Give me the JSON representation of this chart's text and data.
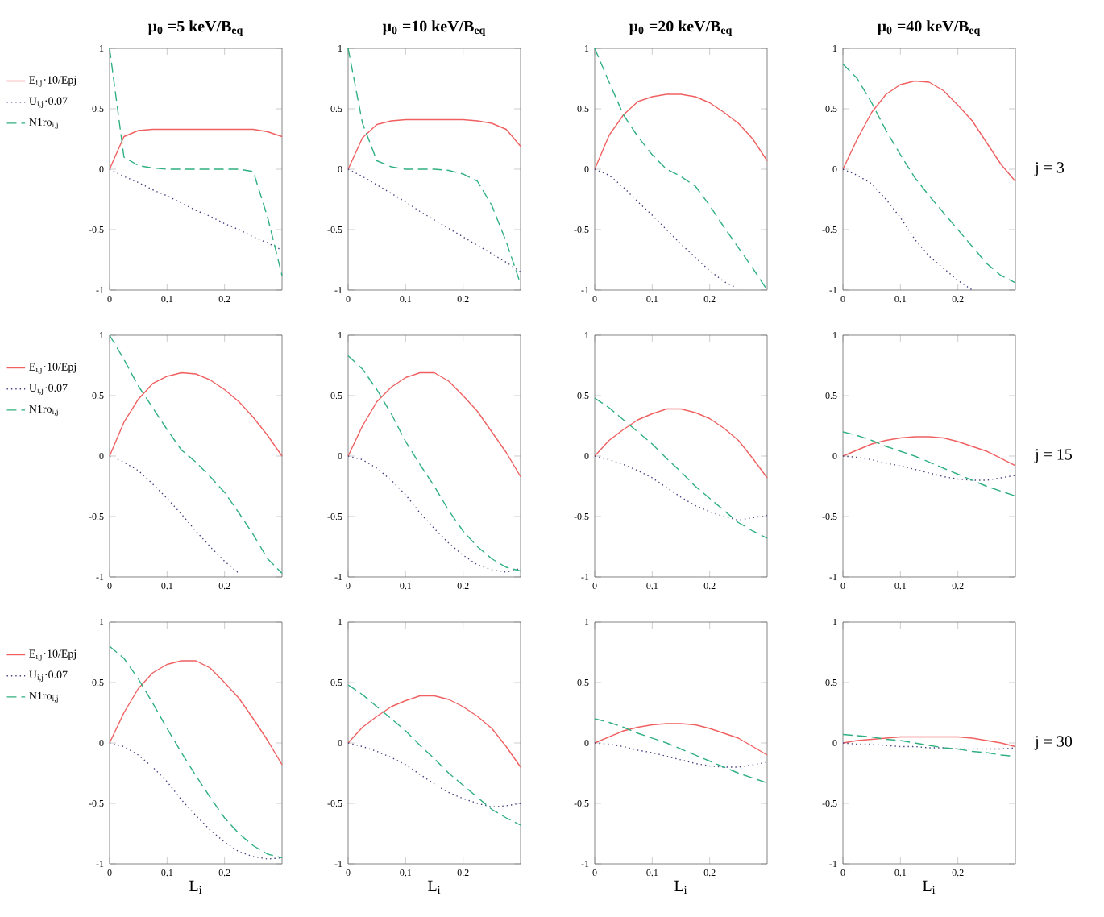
{
  "chart_data": [
    {
      "type": "line",
      "title": "μ$_{0}$ =5 keV/B$_{eq}$",
      "legend": "left",
      "x": [
        0,
        0.025,
        0.05,
        0.075,
        0.1,
        0.125,
        0.15,
        0.175,
        0.2,
        0.225,
        0.25,
        0.275,
        0.3
      ],
      "xlim": [
        0,
        0.3
      ],
      "ylim": [
        -1,
        1
      ],
      "xticks": [
        0,
        0.1,
        0.2
      ],
      "yticks": [
        -1,
        -0.5,
        0,
        0.5,
        1
      ],
      "series": [
        {
          "name": "E$_{i,j}$·10/Epj",
          "color": "#f06060",
          "line_style": "solid",
          "values": [
            0,
            0.27,
            0.32,
            0.33,
            0.33,
            0.33,
            0.33,
            0.33,
            0.33,
            0.33,
            0.33,
            0.31,
            0.27
          ]
        },
        {
          "name": "U$_{i,j}$·0.07",
          "color": "#404080",
          "line_style": "dotted",
          "values": [
            0,
            -0.06,
            -0.11,
            -0.17,
            -0.22,
            -0.28,
            -0.34,
            -0.39,
            -0.45,
            -0.5,
            -0.56,
            -0.61,
            -0.67
          ]
        },
        {
          "name": "N1ro$_{i,j}$",
          "color": "#30b080",
          "line_style": "dashed",
          "values": [
            1,
            0.1,
            0.03,
            0.01,
            0,
            0,
            0,
            0,
            0,
            0,
            -0.02,
            -0.4,
            -0.88
          ]
        }
      ]
    },
    {
      "type": "line",
      "title": "μ$_{0}$ =10 keV/B$_{eq}$",
      "x": [
        0,
        0.025,
        0.05,
        0.075,
        0.1,
        0.125,
        0.15,
        0.175,
        0.2,
        0.225,
        0.25,
        0.275,
        0.3
      ],
      "xlim": [
        0,
        0.3
      ],
      "ylim": [
        -1,
        1
      ],
      "xticks": [
        0,
        0.1,
        0.2
      ],
      "yticks": [
        -1,
        -0.5,
        0,
        0.5,
        1
      ],
      "series": [
        {
          "color": "#f06060",
          "line_style": "solid",
          "values": [
            0,
            0.26,
            0.37,
            0.4,
            0.41,
            0.41,
            0.41,
            0.41,
            0.41,
            0.4,
            0.38,
            0.33,
            0.19
          ]
        },
        {
          "color": "#404080",
          "line_style": "dotted",
          "values": [
            0,
            -0.06,
            -0.13,
            -0.2,
            -0.27,
            -0.35,
            -0.42,
            -0.49,
            -0.56,
            -0.63,
            -0.7,
            -0.77,
            -0.85
          ]
        },
        {
          "color": "#30b080",
          "line_style": "dashed",
          "values": [
            1,
            0.38,
            0.07,
            0.02,
            0,
            0,
            0,
            -0.01,
            -0.04,
            -0.1,
            -0.3,
            -0.6,
            -0.95
          ]
        }
      ]
    },
    {
      "type": "line",
      "title": "μ$_{0}$ =20 keV/B$_{eq}$",
      "x": [
        0,
        0.025,
        0.05,
        0.075,
        0.1,
        0.125,
        0.15,
        0.175,
        0.2,
        0.225,
        0.25,
        0.275,
        0.3
      ],
      "xlim": [
        0,
        0.3
      ],
      "ylim": [
        -1,
        1
      ],
      "xticks": [
        0,
        0.1,
        0.2
      ],
      "yticks": [
        -1,
        -0.5,
        0,
        0.5,
        1
      ],
      "series": [
        {
          "color": "#f06060",
          "line_style": "solid",
          "values": [
            0,
            0.28,
            0.45,
            0.56,
            0.6,
            0.62,
            0.62,
            0.6,
            0.55,
            0.47,
            0.38,
            0.25,
            0.07
          ]
        },
        {
          "color": "#404080",
          "line_style": "dotted",
          "values": [
            0,
            -0.05,
            -0.15,
            -0.27,
            -0.38,
            -0.5,
            -0.62,
            -0.73,
            -0.84,
            -0.93,
            -0.99,
            null,
            null
          ]
        },
        {
          "color": "#30b080",
          "line_style": "dashed",
          "values": [
            1,
            0.72,
            0.45,
            0.27,
            0.12,
            0,
            -0.06,
            -0.14,
            -0.3,
            -0.48,
            -0.65,
            -0.82,
            -1
          ]
        }
      ]
    },
    {
      "type": "line",
      "title": "μ$_{0}$ =40 keV/B$_{eq}$",
      "annotations": [
        "j = 3"
      ],
      "x": [
        0,
        0.025,
        0.05,
        0.075,
        0.1,
        0.125,
        0.15,
        0.175,
        0.2,
        0.225,
        0.25,
        0.275,
        0.3
      ],
      "xlim": [
        0,
        0.3
      ],
      "ylim": [
        -1,
        1
      ],
      "xticks": [
        0,
        0.1,
        0.2
      ],
      "yticks": [
        -1,
        -0.5,
        0,
        0.5,
        1
      ],
      "series": [
        {
          "color": "#f06060",
          "line_style": "solid",
          "values": [
            0,
            0.25,
            0.47,
            0.62,
            0.7,
            0.73,
            0.72,
            0.65,
            0.53,
            0.4,
            0.22,
            0.04,
            -0.1
          ]
        },
        {
          "color": "#404080",
          "line_style": "dotted",
          "values": [
            0,
            -0.05,
            -0.12,
            -0.25,
            -0.4,
            -0.58,
            -0.72,
            -0.82,
            -0.92,
            -1,
            null,
            null,
            null
          ]
        },
        {
          "color": "#30b080",
          "line_style": "dashed",
          "values": [
            0.87,
            0.75,
            0.55,
            0.32,
            0.12,
            -0.07,
            -0.22,
            -0.36,
            -0.5,
            -0.64,
            -0.78,
            -0.88,
            -0.94
          ]
        }
      ]
    },
    {
      "type": "line",
      "legend": "left",
      "x": [
        0,
        0.025,
        0.05,
        0.075,
        0.1,
        0.125,
        0.15,
        0.175,
        0.2,
        0.225,
        0.25,
        0.275,
        0.3
      ],
      "xlim": [
        0,
        0.3
      ],
      "ylim": [
        -1,
        1
      ],
      "xticks": [
        0,
        0.1,
        0.2
      ],
      "yticks": [
        -1,
        -0.5,
        0,
        0.5,
        1
      ],
      "series": [
        {
          "name": "E$_{i,j}$·10/Epj",
          "color": "#f06060",
          "line_style": "solid",
          "values": [
            0,
            0.28,
            0.47,
            0.6,
            0.66,
            0.69,
            0.68,
            0.63,
            0.55,
            0.45,
            0.32,
            0.17,
            0
          ]
        },
        {
          "name": "U$_{i,j}$·0.07",
          "color": "#404080",
          "line_style": "dotted",
          "values": [
            0,
            -0.05,
            -0.12,
            -0.23,
            -0.35,
            -0.48,
            -0.62,
            -0.75,
            -0.87,
            -0.97,
            null,
            null,
            null
          ]
        },
        {
          "name": "N1ro$_{i,j}$",
          "color": "#30b080",
          "line_style": "dashed",
          "values": [
            1,
            0.8,
            0.58,
            0.4,
            0.22,
            0.05,
            -0.05,
            -0.17,
            -0.3,
            -0.47,
            -0.65,
            -0.85,
            -0.97
          ]
        }
      ]
    },
    {
      "type": "line",
      "x": [
        0,
        0.025,
        0.05,
        0.075,
        0.1,
        0.125,
        0.15,
        0.175,
        0.2,
        0.225,
        0.25,
        0.275,
        0.3
      ],
      "xlim": [
        0,
        0.3
      ],
      "ylim": [
        -1,
        1
      ],
      "xticks": [
        0,
        0.1,
        0.2
      ],
      "yticks": [
        -1,
        -0.5,
        0,
        0.5,
        1
      ],
      "series": [
        {
          "color": "#f06060",
          "line_style": "solid",
          "values": [
            0,
            0.25,
            0.45,
            0.57,
            0.65,
            0.69,
            0.69,
            0.62,
            0.5,
            0.37,
            0.2,
            0.03,
            -0.17
          ]
        },
        {
          "color": "#404080",
          "line_style": "dotted",
          "values": [
            0,
            -0.03,
            -0.1,
            -0.2,
            -0.32,
            -0.47,
            -0.6,
            -0.72,
            -0.82,
            -0.9,
            -0.94,
            -0.96,
            -0.93
          ]
        },
        {
          "color": "#30b080",
          "line_style": "dashed",
          "values": [
            0.83,
            0.72,
            0.55,
            0.35,
            0.12,
            -0.07,
            -0.25,
            -0.45,
            -0.62,
            -0.75,
            -0.85,
            -0.92,
            -0.95
          ]
        }
      ]
    },
    {
      "type": "line",
      "x": [
        0,
        0.025,
        0.05,
        0.075,
        0.1,
        0.125,
        0.15,
        0.175,
        0.2,
        0.225,
        0.25,
        0.275,
        0.3
      ],
      "xlim": [
        0,
        0.3
      ],
      "ylim": [
        -1,
        1
      ],
      "xticks": [
        0,
        0.1,
        0.2
      ],
      "yticks": [
        -1,
        -0.5,
        0,
        0.5,
        1
      ],
      "series": [
        {
          "color": "#f06060",
          "line_style": "solid",
          "values": [
            0,
            0.13,
            0.22,
            0.3,
            0.35,
            0.39,
            0.39,
            0.36,
            0.31,
            0.23,
            0.13,
            -0.02,
            -0.18
          ]
        },
        {
          "color": "#404080",
          "line_style": "dotted",
          "values": [
            0,
            -0.03,
            -0.07,
            -0.12,
            -0.18,
            -0.26,
            -0.34,
            -0.41,
            -0.46,
            -0.5,
            -0.53,
            -0.51,
            -0.49
          ]
        },
        {
          "color": "#30b080",
          "line_style": "dashed",
          "values": [
            0.48,
            0.4,
            0.3,
            0.2,
            0.1,
            -0.02,
            -0.13,
            -0.25,
            -0.35,
            -0.45,
            -0.55,
            -0.62,
            -0.68
          ]
        }
      ]
    },
    {
      "type": "line",
      "annotations": [
        "j = 15"
      ],
      "x": [
        0,
        0.025,
        0.05,
        0.075,
        0.1,
        0.125,
        0.15,
        0.175,
        0.2,
        0.225,
        0.25,
        0.275,
        0.3
      ],
      "xlim": [
        0,
        0.3
      ],
      "ylim": [
        -1,
        1
      ],
      "xticks": [
        0,
        0.1,
        0.2
      ],
      "yticks": [
        -1,
        -0.5,
        0,
        0.5,
        1
      ],
      "series": [
        {
          "color": "#f06060",
          "line_style": "solid",
          "values": [
            0,
            0.05,
            0.1,
            0.13,
            0.15,
            0.16,
            0.16,
            0.15,
            0.12,
            0.08,
            0.04,
            -0.02,
            -0.08
          ]
        },
        {
          "color": "#404080",
          "line_style": "dotted",
          "values": [
            0,
            -0.01,
            -0.03,
            -0.06,
            -0.08,
            -0.11,
            -0.14,
            -0.17,
            -0.19,
            -0.2,
            -0.2,
            -0.18,
            -0.16
          ]
        },
        {
          "color": "#30b080",
          "line_style": "dashed",
          "values": [
            0.2,
            0.17,
            0.13,
            0.08,
            0.04,
            0,
            -0.05,
            -0.1,
            -0.15,
            -0.2,
            -0.25,
            -0.29,
            -0.33
          ]
        }
      ]
    },
    {
      "type": "line",
      "legend": "left",
      "xlabel": "L$_{i}$",
      "x": [
        0,
        0.025,
        0.05,
        0.075,
        0.1,
        0.125,
        0.15,
        0.175,
        0.2,
        0.225,
        0.25,
        0.275,
        0.3
      ],
      "xlim": [
        0,
        0.3
      ],
      "ylim": [
        -1,
        1
      ],
      "xticks": [
        0,
        0.1,
        0.2
      ],
      "yticks": [
        -1,
        -0.5,
        0,
        0.5,
        1
      ],
      "series": [
        {
          "name": "E$_{i,j}$·10/Epj",
          "color": "#f06060",
          "line_style": "solid",
          "values": [
            0,
            0.25,
            0.45,
            0.58,
            0.65,
            0.68,
            0.68,
            0.62,
            0.5,
            0.37,
            0.2,
            0.02,
            -0.18
          ]
        },
        {
          "name": "U$_{i,j}$·0.07",
          "color": "#404080",
          "line_style": "dotted",
          "values": [
            0,
            -0.03,
            -0.1,
            -0.2,
            -0.32,
            -0.47,
            -0.6,
            -0.72,
            -0.82,
            -0.9,
            -0.94,
            -0.96,
            -0.95
          ]
        },
        {
          "name": "N1ro$_{i,j}$",
          "color": "#30b080",
          "line_style": "dashed",
          "values": [
            0.8,
            0.7,
            0.53,
            0.33,
            0.12,
            -0.08,
            -0.27,
            -0.45,
            -0.62,
            -0.75,
            -0.85,
            -0.92,
            -0.95
          ]
        }
      ]
    },
    {
      "type": "line",
      "xlabel": "L$_{i}$",
      "x": [
        0,
        0.025,
        0.05,
        0.075,
        0.1,
        0.125,
        0.15,
        0.175,
        0.2,
        0.225,
        0.25,
        0.275,
        0.3
      ],
      "xlim": [
        0,
        0.3
      ],
      "ylim": [
        -1,
        1
      ],
      "xticks": [
        0,
        0.1,
        0.2
      ],
      "yticks": [
        -1,
        -0.5,
        0,
        0.5,
        1
      ],
      "series": [
        {
          "color": "#f06060",
          "line_style": "solid",
          "values": [
            0,
            0.13,
            0.22,
            0.3,
            0.35,
            0.39,
            0.39,
            0.36,
            0.3,
            0.22,
            0.12,
            -0.03,
            -0.2
          ]
        },
        {
          "color": "#404080",
          "line_style": "dotted",
          "values": [
            0,
            -0.03,
            -0.07,
            -0.12,
            -0.18,
            -0.26,
            -0.34,
            -0.41,
            -0.46,
            -0.5,
            -0.53,
            -0.52,
            -0.5
          ]
        },
        {
          "color": "#30b080",
          "line_style": "dashed",
          "values": [
            0.48,
            0.4,
            0.3,
            0.2,
            0.1,
            -0.02,
            -0.13,
            -0.25,
            -0.35,
            -0.45,
            -0.55,
            -0.62,
            -0.68
          ]
        }
      ]
    },
    {
      "type": "line",
      "xlabel": "L$_{i}$",
      "x": [
        0,
        0.025,
        0.05,
        0.075,
        0.1,
        0.125,
        0.15,
        0.175,
        0.2,
        0.225,
        0.25,
        0.275,
        0.3
      ],
      "xlim": [
        0,
        0.3
      ],
      "ylim": [
        -1,
        1
      ],
      "xticks": [
        0,
        0.1,
        0.2
      ],
      "yticks": [
        -1,
        -0.5,
        0,
        0.5,
        1
      ],
      "series": [
        {
          "color": "#f06060",
          "line_style": "solid",
          "values": [
            0,
            0.05,
            0.1,
            0.13,
            0.15,
            0.16,
            0.16,
            0.15,
            0.12,
            0.08,
            0.04,
            -0.03,
            -0.1
          ]
        },
        {
          "color": "#404080",
          "line_style": "dotted",
          "values": [
            0,
            -0.01,
            -0.03,
            -0.06,
            -0.08,
            -0.11,
            -0.14,
            -0.17,
            -0.19,
            -0.2,
            -0.2,
            -0.18,
            -0.16
          ]
        },
        {
          "color": "#30b080",
          "line_style": "dashed",
          "values": [
            0.2,
            0.17,
            0.13,
            0.08,
            0.04,
            0,
            -0.05,
            -0.1,
            -0.15,
            -0.2,
            -0.25,
            -0.29,
            -0.33
          ]
        }
      ]
    },
    {
      "type": "line",
      "xlabel": "L$_{i}$",
      "annotations": [
        "j = 30"
      ],
      "x": [
        0,
        0.025,
        0.05,
        0.075,
        0.1,
        0.125,
        0.15,
        0.175,
        0.2,
        0.225,
        0.25,
        0.275,
        0.3
      ],
      "xlim": [
        0,
        0.3
      ],
      "ylim": [
        -1,
        1
      ],
      "xticks": [
        0,
        0.1,
        0.2
      ],
      "yticks": [
        -1,
        -0.5,
        0,
        0.5,
        1
      ],
      "series": [
        {
          "color": "#f06060",
          "line_style": "solid",
          "values": [
            0,
            0.02,
            0.03,
            0.04,
            0.05,
            0.05,
            0.05,
            0.05,
            0.05,
            0.04,
            0.02,
            0,
            -0.03
          ]
        },
        {
          "color": "#404080",
          "line_style": "dotted",
          "values": [
            0,
            -0.01,
            -0.01,
            -0.02,
            -0.03,
            -0.03,
            -0.04,
            -0.04,
            -0.05,
            -0.05,
            -0.05,
            -0.05,
            -0.04
          ]
        },
        {
          "color": "#30b080",
          "line_style": "dashed",
          "values": [
            0.07,
            0.06,
            0.05,
            0.03,
            0.02,
            0,
            -0.02,
            -0.04,
            -0.05,
            -0.07,
            -0.08,
            -0.1,
            -0.11
          ]
        }
      ]
    }
  ]
}
